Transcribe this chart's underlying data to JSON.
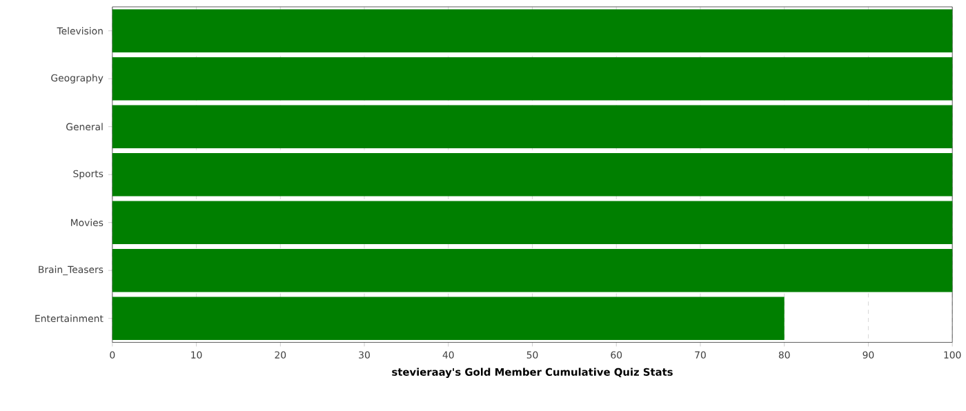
{
  "chart_data": {
    "type": "bar",
    "orientation": "horizontal",
    "xlabel": "stevieraay's Gold Member Cumulative Quiz Stats",
    "categories": [
      "Television",
      "Geography",
      "General",
      "Sports",
      "Movies",
      "Brain_Teasers",
      "Entertainment"
    ],
    "values": [
      100,
      100,
      100,
      100,
      100,
      100,
      80
    ],
    "color": "#007f00",
    "xlim": [
      0,
      100
    ],
    "xticks": [
      0,
      10,
      20,
      30,
      40,
      50,
      60,
      70,
      80,
      90,
      100
    ],
    "grid": "x"
  }
}
